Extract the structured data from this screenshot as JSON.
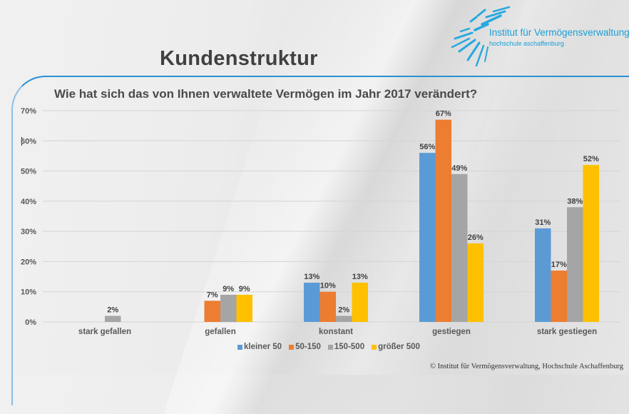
{
  "slide": {
    "title": "Kundenstruktur",
    "logo": {
      "name": "Institut für Vermögensverwaltung",
      "subtitle": "hochschule aschaffenburg"
    },
    "copyright": "© Institut für Vermögensverwaltung, Hochschule Aschaffenburg"
  },
  "colors": {
    "accent": "#2a8fd4",
    "series": [
      "#5b9bd5",
      "#ed7d31",
      "#a5a5a5",
      "#ffc000"
    ]
  },
  "chart_data": {
    "type": "bar",
    "title": "Wie hat sich das von Ihnen verwaltete Vermögen im Jahr 2017 verändert?",
    "xlabel": "",
    "ylabel": "",
    "ylim": [
      0,
      70
    ],
    "yticks": [
      "0%",
      "10%",
      "20%",
      "30%",
      "40%",
      "50%",
      "60%",
      "70%"
    ],
    "ytick_values": [
      0,
      10,
      20,
      30,
      40,
      50,
      60,
      70
    ],
    "grid": true,
    "legend_position": "bottom",
    "categories": [
      "stark gefallen",
      "gefallen",
      "konstant",
      "gestiegen",
      "stark gestiegen"
    ],
    "series": [
      {
        "name": "kleiner 50",
        "values": [
          0,
          0,
          13,
          56,
          31
        ],
        "labels": [
          null,
          null,
          "13%",
          "56%",
          "31%"
        ]
      },
      {
        "name": "50-150",
        "values": [
          0,
          7,
          10,
          67,
          17
        ],
        "labels": [
          null,
          "7%",
          "10%",
          "67%",
          "17%"
        ]
      },
      {
        "name": "150-500",
        "values": [
          2,
          9,
          2,
          49,
          38
        ],
        "labels": [
          "2%",
          "9%",
          "2%",
          "49%",
          "38%"
        ]
      },
      {
        "name": "größer 500",
        "values": [
          0,
          9,
          13,
          26,
          52
        ],
        "labels": [
          null,
          "9%",
          "13%",
          "26%",
          "52%"
        ]
      }
    ]
  }
}
